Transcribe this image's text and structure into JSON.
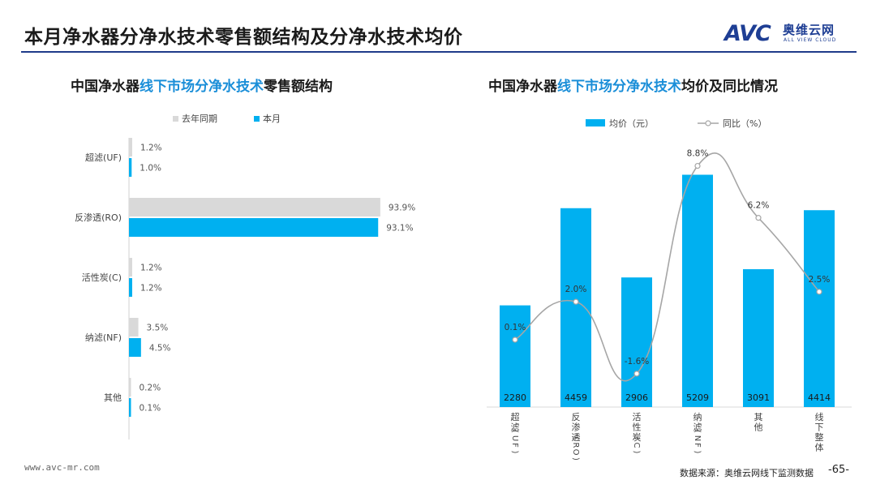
{
  "page": {
    "title": "本月净水器分净水技术零售额结构及分净水技术均价",
    "logo": {
      "mark": "AVC",
      "cn": "奥维云网",
      "en": "ALL VIEW CLOUD"
    },
    "footer_url": "www.avc-mr.com",
    "source": "数据来源：奥维云网线下监测数据",
    "page_number": "-65-"
  },
  "left_chart": {
    "title_prefix": "中国净水器",
    "title_highlight": "线下市场分净水技术",
    "title_suffix": "零售额结构"
  },
  "right_chart": {
    "title_prefix": "中国净水器",
    "title_highlight": "线下市场分净水技术",
    "title_suffix": "均价及同比情况"
  },
  "colors": {
    "current": "#00b0f0",
    "last_year": "#d9d9d9",
    "line": "#a6a6a6",
    "highlight": "#1a8ed8",
    "brand": "#1e3e94"
  },
  "chart_data": [
    {
      "type": "bar",
      "orientation": "horizontal",
      "categories": [
        "超滤(UF)",
        "反渗透(RO)",
        "活性炭(C)",
        "纳滤(NF)",
        "其他"
      ],
      "series": [
        {
          "name": "去年同期",
          "values": [
            1.2,
            93.9,
            1.2,
            3.5,
            0.2
          ],
          "labels": [
            "1.2%",
            "93.9%",
            "1.2%",
            "3.5%",
            "0.2%"
          ]
        },
        {
          "name": "本月",
          "values": [
            1.0,
            93.1,
            1.2,
            4.5,
            0.1
          ],
          "labels": [
            "1.0%",
            "93.1%",
            "1.2%",
            "4.5%",
            "0.1%"
          ]
        }
      ],
      "unit": "%",
      "xlim": [
        0,
        100
      ],
      "legend": "top-center"
    },
    {
      "type": "bar+line",
      "categories": [
        "超滤(UF)",
        "反渗透(RO)",
        "活性炭(C)",
        "纳滤(NF)",
        "其他",
        "线下整体"
      ],
      "series": [
        {
          "name": "均价（元）",
          "type": "bar",
          "values": [
            2280,
            4459,
            2906,
            5209,
            3091,
            4414
          ],
          "labels": [
            "2280",
            "4459",
            "2906",
            "5209",
            "3091",
            "4414"
          ]
        },
        {
          "name": "同比（%）",
          "type": "line",
          "values": [
            0.1,
            2.0,
            -1.6,
            8.8,
            6.2,
            2.5
          ],
          "labels": [
            "0.1%",
            "2.0%",
            "-1.6%",
            "8.8%",
            "6.2%",
            "2.5%"
          ]
        }
      ],
      "y_bar_lim": [
        0,
        6000
      ],
      "y_line_lim": [
        -4,
        10
      ],
      "legend": "top-center",
      "grid": false
    }
  ]
}
